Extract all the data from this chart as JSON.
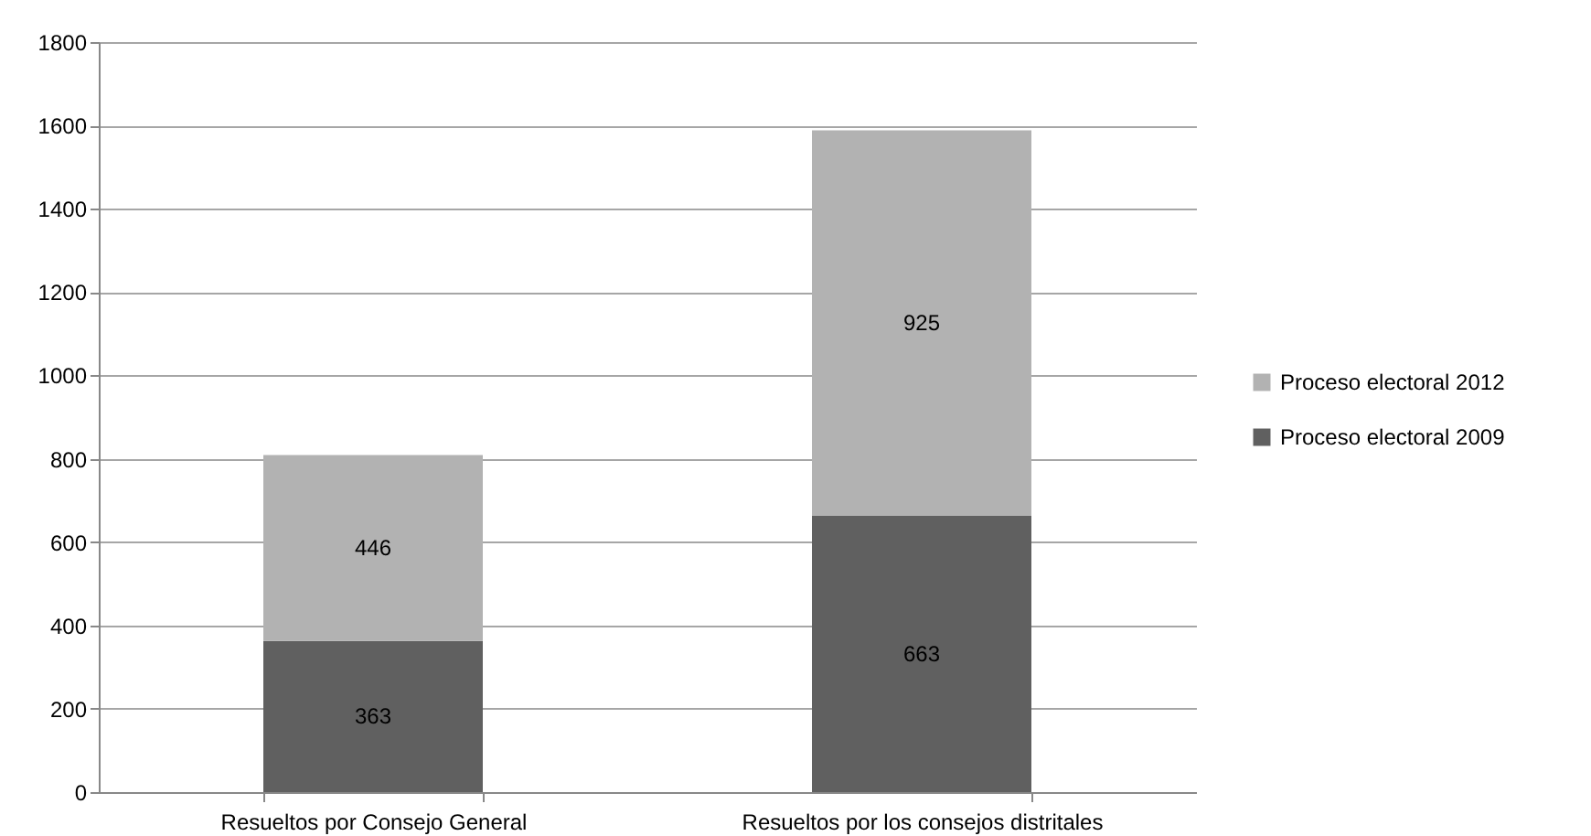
{
  "chart_data": {
    "type": "bar",
    "stacked": true,
    "categories": [
      "Resueltos por Consejo General",
      "Resueltos por los consejos distritales"
    ],
    "series": [
      {
        "name": "Proceso electoral 2009",
        "color": "#606060",
        "values": [
          363,
          663
        ]
      },
      {
        "name": "Proceso electoral 2012",
        "color": "#b2b2b2",
        "values": [
          446,
          925
        ]
      }
    ],
    "ylim": [
      0,
      1800
    ],
    "yticks": [
      0,
      200,
      400,
      600,
      800,
      1000,
      1200,
      1400,
      1600,
      1800
    ],
    "grid": "y",
    "legend": "right",
    "data_labels": true
  }
}
